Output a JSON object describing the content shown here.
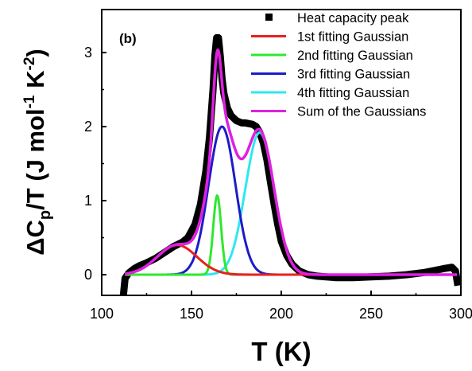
{
  "chart_data": {
    "type": "line",
    "panel_label": "(b)",
    "xlabel": "T (K)",
    "ylabel": "ΔCp/T (J mol-1 K-2)",
    "xlim": [
      100,
      300
    ],
    "ylim": [
      0,
      3
    ],
    "xticks": [
      "100",
      "150",
      "200",
      "250",
      "300"
    ],
    "yticks": [
      "0",
      "1",
      "2",
      "3"
    ],
    "legend_position": "top-right",
    "series": [
      {
        "name": "Heat capacity peak",
        "style": "marker",
        "color": "#000000",
        "x": [
          112,
          113,
          115,
          118,
          121,
          125,
          130,
          135,
          140,
          145,
          148,
          152,
          155,
          158,
          160,
          162,
          163,
          164,
          165,
          166,
          167,
          168,
          170,
          172,
          175,
          178,
          180,
          182,
          184,
          186,
          188,
          190,
          192,
          194,
          196,
          198,
          200,
          203,
          206,
          210,
          215,
          220,
          230,
          240,
          250,
          260,
          270,
          280,
          290,
          295,
          297,
          298
        ],
        "y": [
          -0.3,
          -0.05,
          0.02,
          0.08,
          0.12,
          0.16,
          0.22,
          0.3,
          0.38,
          0.44,
          0.5,
          0.68,
          0.95,
          1.4,
          1.85,
          2.5,
          2.95,
          3.2,
          3.2,
          2.95,
          2.65,
          2.45,
          2.25,
          2.15,
          2.08,
          2.05,
          2.05,
          2.04,
          2.03,
          2.0,
          1.92,
          1.78,
          1.55,
          1.25,
          0.95,
          0.68,
          0.45,
          0.26,
          0.14,
          0.05,
          0.0,
          -0.02,
          -0.04,
          -0.04,
          -0.03,
          -0.02,
          0.0,
          0.03,
          0.08,
          0.1,
          0.05,
          -0.1
        ]
      },
      {
        "name": "1st fitting Gaussian",
        "style": "line",
        "color": "#e8201e",
        "gaussian": {
          "amplitude": 0.4,
          "center": 142,
          "sigma": 11
        },
        "x_range": [
          113,
          298
        ]
      },
      {
        "name": "2nd fitting Gaussian",
        "style": "line",
        "color": "#2ee82e",
        "gaussian": {
          "amplitude": 1.07,
          "center": 164.3,
          "sigma": 2.2
        },
        "x_range": [
          113,
          298
        ]
      },
      {
        "name": "3rd fitting Gaussian",
        "style": "line",
        "color": "#1c1cc8",
        "gaussian": {
          "amplitude": 2.0,
          "center": 167,
          "sigma": 7.5
        },
        "x_range": [
          113,
          298
        ]
      },
      {
        "name": "4th fitting Gaussian",
        "style": "line",
        "color": "#2ee8f0",
        "gaussian": {
          "amplitude": 1.92,
          "center": 188,
          "sigma": 8
        },
        "x_range": [
          113,
          298
        ]
      },
      {
        "name": "Sum of the Gaussians",
        "style": "line",
        "color": "#e020e0",
        "sum_of": [
          1,
          2,
          3,
          4
        ],
        "x_range": [
          113,
          298
        ]
      }
    ]
  }
}
